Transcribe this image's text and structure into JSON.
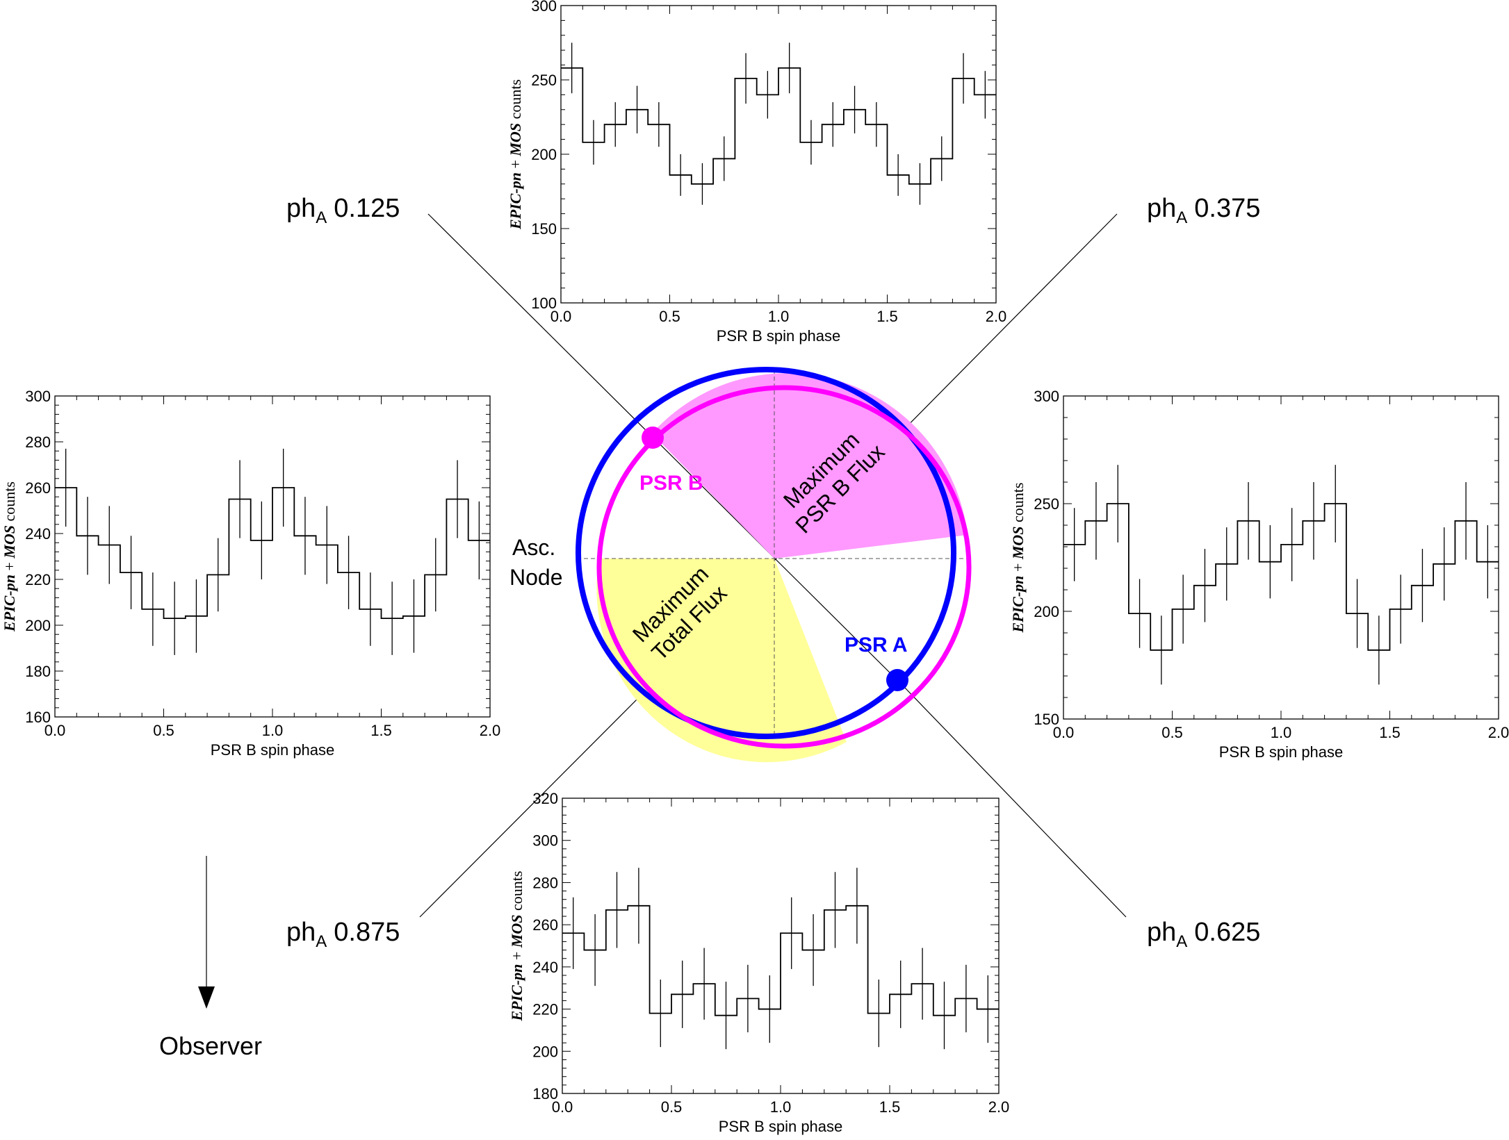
{
  "phase_labels": {
    "top_left": {
      "prefix": "ph",
      "sub": "A",
      "value": "0.125"
    },
    "top_right": {
      "prefix": "ph",
      "sub": "A",
      "value": "0.375"
    },
    "bottom_left": {
      "prefix": "ph",
      "sub": "A",
      "value": "0.875"
    },
    "bottom_right": {
      "prefix": "ph",
      "sub": "A",
      "value": "0.625"
    }
  },
  "orbit": {
    "psr_b_label": "PSR B",
    "psr_a_label": "PSR A",
    "psr_b_color": "#ff00ff",
    "psr_a_color": "#0000ff",
    "max_psr_b_flux_line1": "Maximum",
    "max_psr_b_flux_line2": "PSR B Flux",
    "max_total_flux_line1": "Maximum",
    "max_total_flux_line2": "Total Flux",
    "asc_line1": "Asc.",
    "asc_line2": "Node",
    "psr_b_sector_color": "#ff99ff",
    "total_sector_color": "#ffff99"
  },
  "observer": {
    "label": "Observer"
  },
  "chart_data": [
    {
      "id": "top",
      "type": "line",
      "drawstyle": "steps",
      "xlabel": "PSR B spin phase",
      "ylabel_parts": [
        "EPIC-pn",
        " + ",
        "MOS",
        "  counts"
      ],
      "xlim": [
        0.0,
        2.0
      ],
      "ylim": [
        100,
        300
      ],
      "xticks": [
        0.0,
        0.5,
        1.0,
        1.5,
        2.0
      ],
      "xtick_labels": [
        "0.0",
        "0.5",
        "1.0",
        "1.5",
        "2.0"
      ],
      "yticks": [
        100,
        150,
        200,
        250,
        300
      ],
      "ytick_labels": [
        "100",
        "150",
        "200",
        "250",
        "300"
      ],
      "x": [
        0.05,
        0.15,
        0.25,
        0.35,
        0.45,
        0.55,
        0.65,
        0.75,
        0.85,
        0.95,
        1.05,
        1.15,
        1.25,
        1.35,
        1.45,
        1.55,
        1.65,
        1.75,
        1.85,
        1.95
      ],
      "values": [
        258,
        208,
        220,
        230,
        220,
        186,
        180,
        197,
        251,
        240,
        258,
        208,
        220,
        230,
        220,
        186,
        180,
        197,
        251,
        240
      ],
      "errors": [
        17,
        15,
        15,
        16,
        15,
        14,
        14,
        15,
        17,
        16,
        17,
        15,
        15,
        16,
        15,
        14,
        14,
        15,
        17,
        16
      ]
    },
    {
      "id": "left",
      "type": "line",
      "drawstyle": "steps",
      "xlabel": "PSR B spin phase",
      "ylabel_parts": [
        "EPIC-pn",
        " + ",
        "MOS",
        "  counts"
      ],
      "xlim": [
        0.0,
        2.0
      ],
      "ylim": [
        160,
        300
      ],
      "xticks": [
        0.0,
        0.5,
        1.0,
        1.5,
        2.0
      ],
      "xtick_labels": [
        "0.0",
        "0.5",
        "1.0",
        "1.5",
        "2.0"
      ],
      "yticks": [
        160,
        180,
        200,
        220,
        240,
        260,
        280,
        300
      ],
      "ytick_labels": [
        "160",
        "180",
        "200",
        "220",
        "240",
        "260",
        "280",
        "300"
      ],
      "x": [
        0.05,
        0.15,
        0.25,
        0.35,
        0.45,
        0.55,
        0.65,
        0.75,
        0.85,
        0.95,
        1.05,
        1.15,
        1.25,
        1.35,
        1.45,
        1.55,
        1.65,
        1.75,
        1.85,
        1.95
      ],
      "values": [
        260,
        239,
        235,
        223,
        207,
        203,
        204,
        222,
        255,
        237,
        260,
        239,
        235,
        223,
        207,
        203,
        204,
        222,
        255,
        237
      ],
      "errors": [
        17,
        17,
        17,
        16,
        16,
        16,
        16,
        16,
        17,
        17,
        17,
        17,
        17,
        16,
        16,
        16,
        16,
        16,
        17,
        17
      ]
    },
    {
      "id": "right",
      "type": "line",
      "drawstyle": "steps",
      "xlabel": "PSR B spin phase",
      "ylabel_parts": [
        "EPIC-pn",
        " + ",
        "MOS",
        "  counts"
      ],
      "xlim": [
        0.0,
        2.0
      ],
      "ylim": [
        150,
        300
      ],
      "xticks": [
        0.0,
        0.5,
        1.0,
        1.5,
        2.0
      ],
      "xtick_labels": [
        "0.0",
        "0.5",
        "1.0",
        "1.5",
        "2.0"
      ],
      "yticks": [
        150,
        200,
        250,
        300
      ],
      "ytick_labels": [
        "150",
        "200",
        "250",
        "300"
      ],
      "x": [
        0.05,
        0.15,
        0.25,
        0.35,
        0.45,
        0.55,
        0.65,
        0.75,
        0.85,
        0.95,
        1.05,
        1.15,
        1.25,
        1.35,
        1.45,
        1.55,
        1.65,
        1.75,
        1.85,
        1.95
      ],
      "values": [
        231,
        242,
        250,
        199,
        182,
        201,
        212,
        222,
        242,
        223,
        231,
        242,
        250,
        199,
        182,
        201,
        212,
        222,
        242,
        223
      ],
      "errors": [
        17,
        18,
        18,
        16,
        16,
        16,
        17,
        17,
        18,
        17,
        17,
        18,
        18,
        16,
        16,
        16,
        17,
        17,
        18,
        17
      ]
    },
    {
      "id": "bottom",
      "type": "line",
      "drawstyle": "steps",
      "xlabel": "PSR B spin phase",
      "ylabel_parts": [
        "EPIC-pn",
        " + ",
        "MOS",
        "  counts"
      ],
      "xlim": [
        0.0,
        2.0
      ],
      "ylim": [
        180,
        320
      ],
      "xticks": [
        0.0,
        0.5,
        1.0,
        1.5,
        2.0
      ],
      "xtick_labels": [
        "0.0",
        "0.5",
        "1.0",
        "1.5",
        "2.0"
      ],
      "yticks": [
        180,
        200,
        220,
        240,
        260,
        280,
        300,
        320
      ],
      "ytick_labels": [
        "180",
        "200",
        "220",
        "240",
        "260",
        "280",
        "300",
        "320"
      ],
      "x": [
        0.05,
        0.15,
        0.25,
        0.35,
        0.45,
        0.55,
        0.65,
        0.75,
        0.85,
        0.95,
        1.05,
        1.15,
        1.25,
        1.35,
        1.45,
        1.55,
        1.65,
        1.75,
        1.85,
        1.95
      ],
      "values": [
        256,
        248,
        267,
        269,
        218,
        227,
        232,
        217,
        225,
        220,
        256,
        248,
        267,
        269,
        218,
        227,
        232,
        217,
        225,
        220
      ],
      "errors": [
        17,
        17,
        18,
        18,
        16,
        16,
        17,
        16,
        16,
        16,
        17,
        17,
        18,
        18,
        16,
        16,
        17,
        16,
        16,
        16
      ]
    }
  ]
}
